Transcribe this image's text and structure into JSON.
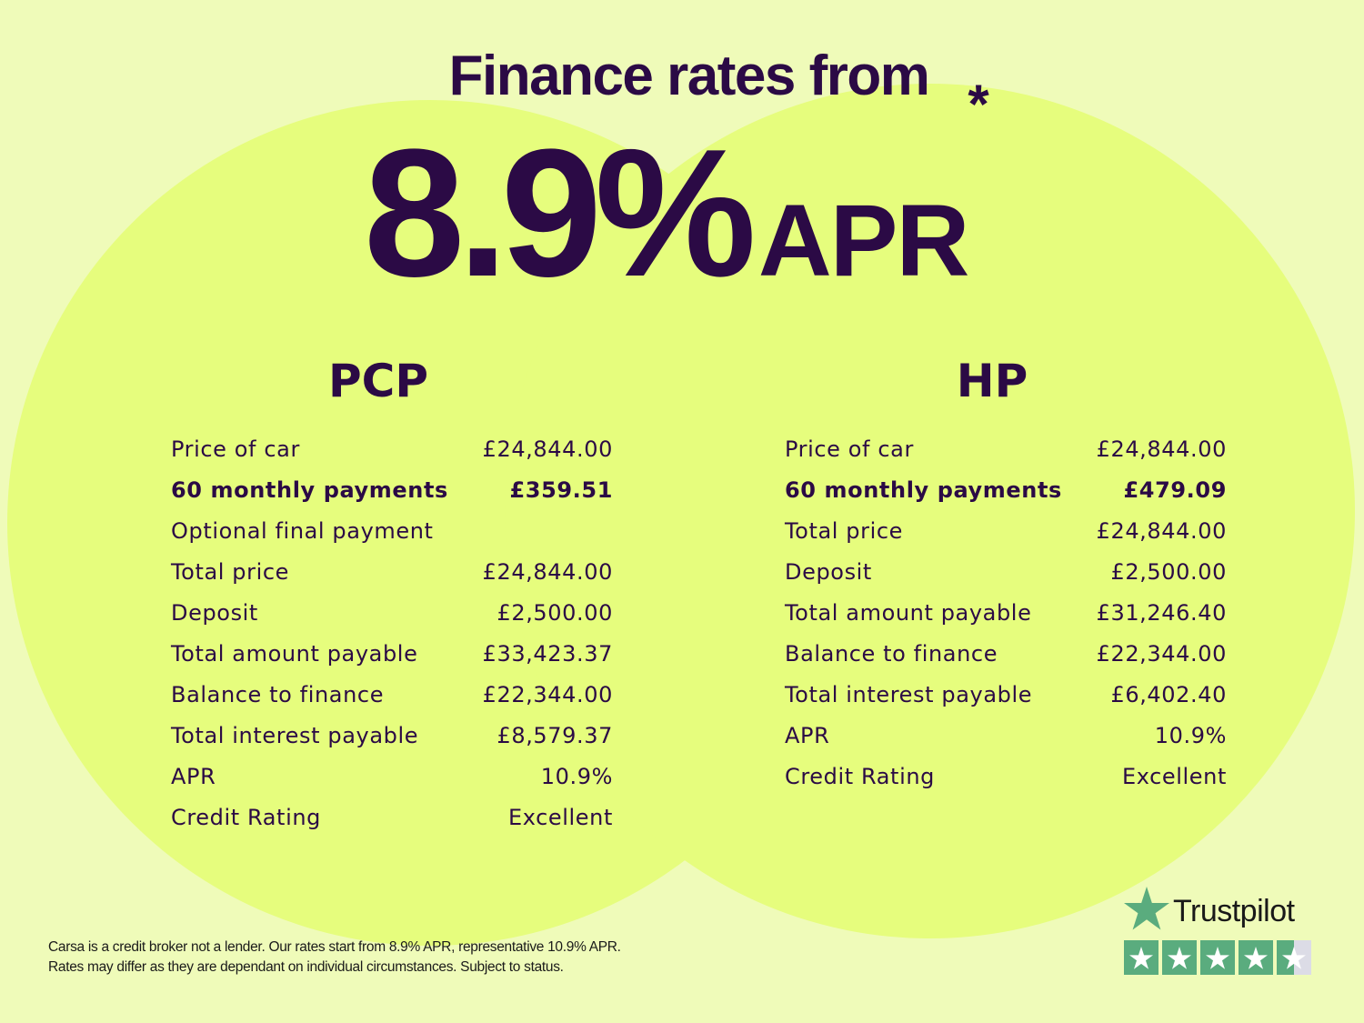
{
  "headline": {
    "line1": "Finance rates from",
    "rate": "8.9%",
    "suffix": "APR",
    "asterisk": "*"
  },
  "colors": {
    "text": "#2b0a45",
    "background": "#effbb9",
    "circle": "#e6fd7d",
    "trustpilot_green": "#5aac7e"
  },
  "pcp": {
    "title": "PCP",
    "rows": [
      {
        "label": "Price of car",
        "value": "£24,844.00"
      },
      {
        "label": "60 monthly payments",
        "value": "£359.51",
        "bold": true
      },
      {
        "label": "Optional final payment",
        "value": ""
      },
      {
        "label": "Total price",
        "value": "£24,844.00"
      },
      {
        "label": "Deposit",
        "value": "£2,500.00"
      },
      {
        "label": "Total amount payable",
        "value": "£33,423.37"
      },
      {
        "label": "Balance to finance",
        "value": "£22,344.00"
      },
      {
        "label": "Total interest payable",
        "value": "£8,579.37"
      },
      {
        "label": "APR",
        "value": "10.9%"
      },
      {
        "label": "Credit Rating",
        "value": "Excellent"
      }
    ]
  },
  "hp": {
    "title": "HP",
    "rows": [
      {
        "label": "Price of car",
        "value": "£24,844.00"
      },
      {
        "label": "60 monthly payments",
        "value": "£479.09",
        "bold": true
      },
      {
        "label": "Total price",
        "value": "£24,844.00"
      },
      {
        "label": "Deposit",
        "value": "£2,500.00"
      },
      {
        "label": "Total amount payable",
        "value": "£31,246.40"
      },
      {
        "label": "Balance to finance",
        "value": "£22,344.00"
      },
      {
        "label": "Total interest payable",
        "value": "£6,402.40"
      },
      {
        "label": "APR",
        "value": "10.9%"
      },
      {
        "label": "Credit Rating",
        "value": "Excellent"
      }
    ]
  },
  "disclaimer": {
    "line1": "Carsa is a credit broker not a lender. Our rates start from 8.9% APR, representative 10.9% APR.",
    "line2": "Rates may differ as they are dependant on individual circumstances. Subject to status."
  },
  "trustpilot": {
    "name": "Trustpilot",
    "rating_stars": 4.5,
    "max_stars": 5,
    "icon": "star-icon"
  }
}
